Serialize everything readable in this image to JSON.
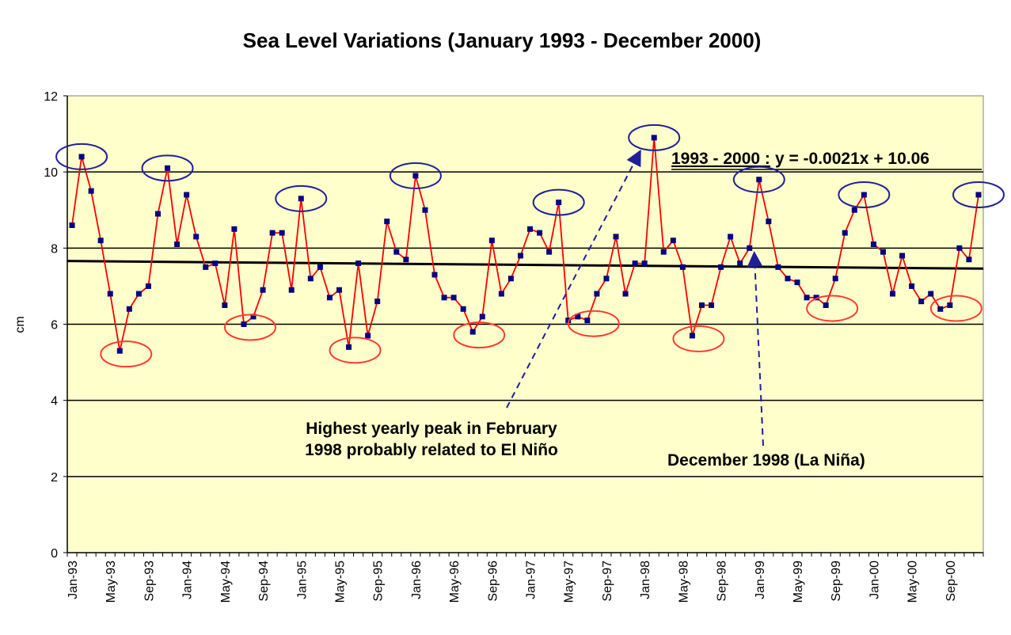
{
  "chart_data": {
    "type": "line",
    "title": "Sea Level Variations (January 1993 - December 2000)",
    "ylabel": "cm",
    "xlabel": "",
    "ylim": [
      0,
      12
    ],
    "yticks": [
      0,
      2,
      4,
      6,
      8,
      10,
      12
    ],
    "grid": true,
    "x_tick_labels": [
      "Jan-93",
      "May-93",
      "Sep-93",
      "Jan-94",
      "May-94",
      "Sep-94",
      "Jan-95",
      "May-95",
      "Sep-95",
      "Jan-96",
      "May-96",
      "Sep-96",
      "Jan-97",
      "May-97",
      "Sep-97",
      "Jan-98",
      "May-98",
      "Sep-98",
      "Jan-99",
      "May-99",
      "Sep-99",
      "Jan-00",
      "May-00",
      "Sep-00"
    ],
    "x": [
      "Jan-93",
      "Feb-93",
      "Mar-93",
      "Apr-93",
      "May-93",
      "Jun-93",
      "Jul-93",
      "Aug-93",
      "Sep-93",
      "Oct-93",
      "Nov-93",
      "Dec-93",
      "Jan-94",
      "Feb-94",
      "Mar-94",
      "Apr-94",
      "May-94",
      "Jun-94",
      "Jul-94",
      "Aug-94",
      "Sep-94",
      "Oct-94",
      "Nov-94",
      "Dec-94",
      "Jan-95",
      "Feb-95",
      "Mar-95",
      "Apr-95",
      "May-95",
      "Jun-95",
      "Jul-95",
      "Aug-95",
      "Sep-95",
      "Oct-95",
      "Nov-95",
      "Dec-95",
      "Jan-96",
      "Feb-96",
      "Mar-96",
      "Apr-96",
      "May-96",
      "Jun-96",
      "Jul-96",
      "Aug-96",
      "Sep-96",
      "Oct-96",
      "Nov-96",
      "Dec-96",
      "Jan-97",
      "Feb-97",
      "Mar-97",
      "Apr-97",
      "May-97",
      "Jun-97",
      "Jul-97",
      "Aug-97",
      "Sep-97",
      "Oct-97",
      "Nov-97",
      "Dec-97",
      "Jan-98",
      "Feb-98",
      "Mar-98",
      "Apr-98",
      "May-98",
      "Jun-98",
      "Jul-98",
      "Aug-98",
      "Sep-98",
      "Oct-98",
      "Nov-98",
      "Dec-98",
      "Jan-99",
      "Feb-99",
      "Mar-99",
      "Apr-99",
      "May-99",
      "Jun-99",
      "Jul-99",
      "Aug-99",
      "Sep-99",
      "Oct-99",
      "Nov-99",
      "Dec-99",
      "Jan-00",
      "Feb-00",
      "Mar-00",
      "Apr-00",
      "May-00",
      "Jun-00",
      "Jul-00",
      "Aug-00",
      "Sep-00",
      "Oct-00",
      "Nov-00",
      "Dec-00"
    ],
    "series": [
      {
        "values": [
          8.6,
          10.4,
          9.5,
          8.2,
          6.8,
          5.3,
          6.4,
          6.8,
          7.0,
          8.9,
          10.1,
          8.1,
          9.4,
          8.3,
          7.5,
          7.6,
          6.5,
          8.5,
          6.0,
          6.2,
          6.9,
          8.4,
          8.4,
          6.9,
          9.3,
          7.2,
          7.5,
          6.7,
          6.9,
          5.4,
          7.6,
          5.7,
          6.6,
          8.7,
          7.9,
          7.7,
          9.9,
          9.0,
          7.3,
          6.7,
          6.7,
          6.4,
          5.8,
          6.2,
          8.2,
          6.8,
          7.2,
          7.8,
          8.5,
          8.4,
          7.9,
          9.2,
          6.1,
          6.2,
          6.1,
          6.8,
          7.2,
          8.3,
          6.8,
          7.6,
          7.6,
          10.9,
          7.9,
          8.2,
          7.5,
          5.7,
          6.5,
          6.5,
          7.5,
          8.3,
          7.6,
          8.0,
          9.8,
          8.7,
          7.5,
          7.2,
          7.1,
          6.7,
          6.7,
          6.5,
          7.2,
          8.4,
          9.0,
          9.4,
          8.1,
          7.9,
          6.8,
          7.8,
          7.0,
          6.6,
          6.8,
          6.4,
          6.5,
          8.0,
          7.7,
          9.4
        ],
        "line_color": "#ff0000",
        "marker_color": "#000080"
      }
    ],
    "trendline": {
      "label": "1993 - 2000 :",
      "equation": "y = -0.0021x + 10.06",
      "start_value": 7.66,
      "end_value": 7.46,
      "color": "#000000"
    },
    "annotations": [
      {
        "line1": "Highest yearly peak in February",
        "line2": "1998 probably related to El Niño",
        "points_to_month": 61
      },
      {
        "text": "December 1998 (La Niña)",
        "points_to_month": 71
      }
    ],
    "highlighted_highs": [
      1,
      10,
      24,
      36,
      51,
      61,
      72,
      83,
      95
    ],
    "highlighted_lows": [
      5,
      18,
      29,
      42,
      54,
      65,
      79,
      92
    ],
    "plot_background": "#ffffcc",
    "high_circle_color": "#1f1f99",
    "low_circle_color": "#ff3b30"
  }
}
